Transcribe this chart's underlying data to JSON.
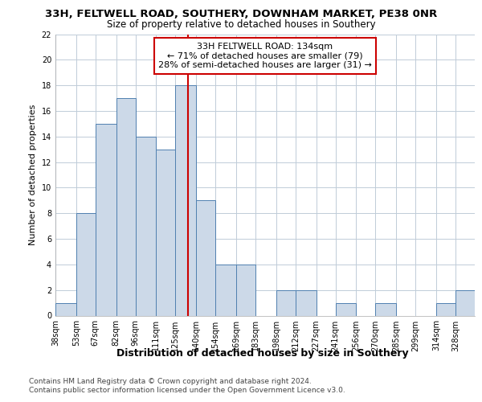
{
  "title": "33H, FELTWELL ROAD, SOUTHERY, DOWNHAM MARKET, PE38 0NR",
  "subtitle": "Size of property relative to detached houses in Southery",
  "xlabel": "Distribution of detached houses by size in Southery",
  "ylabel": "Number of detached properties",
  "bin_labels": [
    "38sqm",
    "53sqm",
    "67sqm",
    "82sqm",
    "96sqm",
    "111sqm",
    "125sqm",
    "140sqm",
    "154sqm",
    "169sqm",
    "183sqm",
    "198sqm",
    "212sqm",
    "227sqm",
    "241sqm",
    "256sqm",
    "270sqm",
    "285sqm",
    "299sqm",
    "314sqm",
    "328sqm"
  ],
  "bin_edges": [
    38,
    53,
    67,
    82,
    96,
    111,
    125,
    140,
    154,
    169,
    183,
    198,
    212,
    227,
    241,
    256,
    270,
    285,
    299,
    314,
    328,
    342
  ],
  "bar_heights": [
    1,
    8,
    15,
    17,
    14,
    13,
    18,
    9,
    4,
    4,
    0,
    2,
    2,
    0,
    1,
    0,
    1,
    0,
    0,
    1,
    2
  ],
  "bar_color": "#ccd9e8",
  "bar_edge_color": "#5080b0",
  "property_value": 134,
  "vline_color": "#cc0000",
  "annotation_text": "33H FELTWELL ROAD: 134sqm\n← 71% of detached houses are smaller (79)\n28% of semi-detached houses are larger (31) →",
  "annotation_box_color": "#ffffff",
  "annotation_box_edge": "#cc0000",
  "ylim": [
    0,
    22
  ],
  "yticks": [
    0,
    2,
    4,
    6,
    8,
    10,
    12,
    14,
    16,
    18,
    20,
    22
  ],
  "plot_bg_color": "#ffffff",
  "fig_bg_color": "#ffffff",
  "grid_color": "#c0ccd8",
  "footer_line1": "Contains HM Land Registry data © Crown copyright and database right 2024.",
  "footer_line2": "Contains public sector information licensed under the Open Government Licence v3.0.",
  "title_fontsize": 9.5,
  "subtitle_fontsize": 8.5,
  "xlabel_fontsize": 9,
  "ylabel_fontsize": 8,
  "tick_fontsize": 7,
  "annotation_fontsize": 8,
  "footer_fontsize": 6.5
}
